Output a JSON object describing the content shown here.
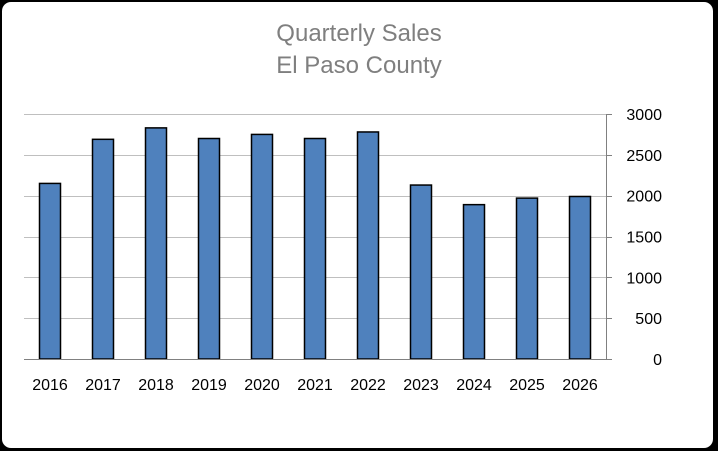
{
  "chart_data": {
    "type": "bar",
    "title": "Quarterly Sales",
    "subtitle": "El Paso County",
    "xlabel": "",
    "ylabel": "",
    "categories": [
      "2016",
      "2017",
      "2018",
      "2019",
      "2020",
      "2021",
      "2022",
      "2023",
      "2024",
      "2025",
      "2026"
    ],
    "values": [
      2150,
      2690,
      2830,
      2700,
      2750,
      2700,
      2780,
      2130,
      1890,
      1970,
      1990
    ],
    "ylim": [
      0,
      3000
    ],
    "yticks": [
      0,
      500,
      1000,
      1500,
      2000,
      2500,
      3000
    ],
    "y_axis_side": "right",
    "grid": true,
    "legend": "none",
    "colors": {
      "bar_fill": "#4f81bd",
      "bar_stroke": "#000000",
      "grid": "#bfbfbf",
      "title": "#7f7f7f",
      "background": "#ffffff",
      "border": "#000000"
    }
  }
}
